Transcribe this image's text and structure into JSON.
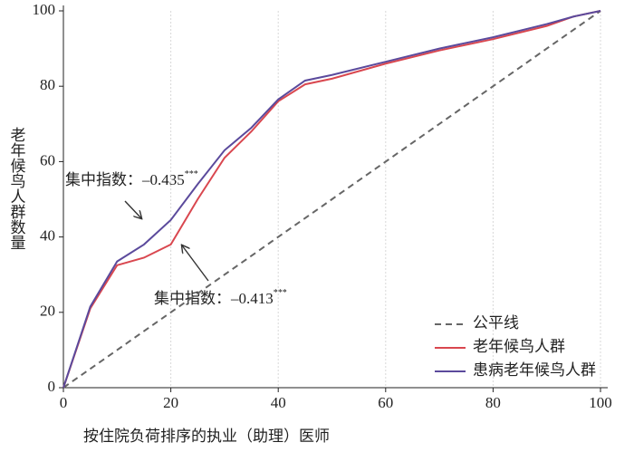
{
  "chart_data": {
    "type": "line",
    "xlabel": "按住院负荷排序的执业（助理）医师",
    "ylabel": "老年候鸟人群数量",
    "x": [
      0,
      5,
      10,
      15,
      20,
      25,
      30,
      35,
      40,
      45,
      50,
      60,
      70,
      80,
      90,
      95,
      100
    ],
    "series": [
      {
        "name": "公平线",
        "color": "#666666",
        "dashed": true,
        "values": [
          0,
          5,
          10,
          15,
          20,
          25,
          30,
          35,
          40,
          45,
          50,
          60,
          70,
          80,
          90,
          95,
          100
        ]
      },
      {
        "name": "老年候鸟人群",
        "color": "#d9474f",
        "dashed": false,
        "values": [
          0,
          21,
          32.5,
          34.5,
          38,
          50,
          61,
          68,
          76,
          80.5,
          82,
          86,
          89.5,
          92.5,
          96,
          98.5,
          100
        ]
      },
      {
        "name": "患病老年候鸟人群",
        "color": "#5b4a9c",
        "dashed": false,
        "values": [
          0,
          21.5,
          33.5,
          38,
          44.5,
          54,
          63,
          69,
          76.5,
          81.5,
          83,
          86.5,
          90,
          93,
          96.5,
          98.5,
          100
        ]
      }
    ],
    "annotations": [
      {
        "text": "集中指数：–0.435",
        "sup": "***"
      },
      {
        "text": "集中指数：–0.413",
        "sup": "***"
      }
    ],
    "xlim": [
      0,
      100
    ],
    "xticks": [
      0,
      20,
      40,
      60,
      80,
      100
    ],
    "ylim": [
      0,
      100
    ],
    "yticks": [
      0,
      20,
      40,
      60,
      80,
      100
    ],
    "grid": true,
    "legend": "lower right"
  }
}
